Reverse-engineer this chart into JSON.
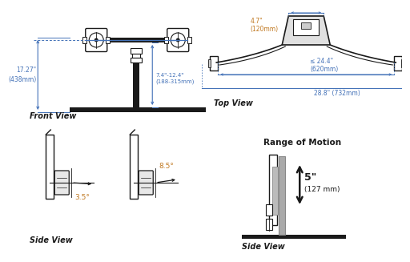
{
  "bg_color": "#ffffff",
  "line_color": "#1a1a1a",
  "dim_color": "#4472b8",
  "orange_color": "#c07820",
  "front_view_label": "Front View",
  "front_dim_17": "17.27\"\n(438mm)",
  "front_dim_74": "7.4\"-12.4\"\n(188-315mm)",
  "top_view_label": "Top View",
  "top_dim_47": "4.7\"\n(120mm)",
  "top_dim_244": "≤ 24.4\"\n(620mm)",
  "top_dim_288": "28.8\" (732mm)",
  "side_view_label": "Side View",
  "angle1": "3.5°",
  "angle2": "8.5°",
  "rom_label": "Range of Motion",
  "rom_side_label": "Side View",
  "rom_dim_5": "5\"",
  "rom_dim_127": "(127 mm)"
}
